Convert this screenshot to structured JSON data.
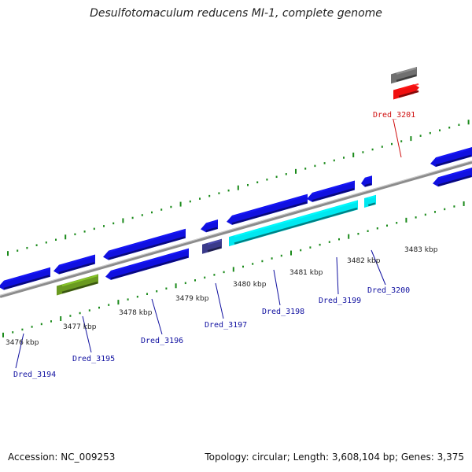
{
  "title": "Desulfotomaculum reducens MI-1, complete genome",
  "footer": {
    "accession": "Accession: NC_009253",
    "summary": "Topology: circular; Length: 3,608,104 bp; Genes: 3,375"
  },
  "colors": {
    "backbone": "#8c8c8c",
    "tick": "#1a8a1a",
    "gene_blue": "#1010e0",
    "gene_cyan": "#00e8f0",
    "gene_olive": "#6a9a20",
    "gene_navy": "#3a3a8a",
    "gene_gray": "#707070",
    "gene_red": "#f01010",
    "label_blue": "#1010a0",
    "label_red": "#d01010"
  },
  "scale_labels": [
    "3476 kbp",
    "3477 kbp",
    "3478 kbp",
    "3479 kbp",
    "3480 kbp",
    "3481 kbp",
    "3482 kbp",
    "3483 kbp"
  ],
  "gene_labels": [
    {
      "id": "Dred_3194",
      "color": "label_blue"
    },
    {
      "id": "Dred_3195",
      "color": "label_blue"
    },
    {
      "id": "Dred_3196",
      "color": "label_blue"
    },
    {
      "id": "Dred_3197",
      "color": "label_blue"
    },
    {
      "id": "Dred_3198",
      "color": "label_blue"
    },
    {
      "id": "Dred_3199",
      "color": "label_blue"
    },
    {
      "id": "Dred_3200",
      "color": "label_blue"
    },
    {
      "id": "Dred_3201",
      "color": "label_red"
    }
  ]
}
